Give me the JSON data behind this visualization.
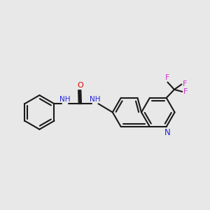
{
  "background_color": "#e8e8e8",
  "bond_color": "#1a1a1a",
  "nitrogen_color": "#2222dd",
  "oxygen_color": "#dd0000",
  "fluorine_color": "#cc33cc",
  "bond_width": 1.5,
  "figsize": [
    3.0,
    3.0
  ],
  "dpi": 100,
  "xlim": [
    0,
    10
  ],
  "ylim": [
    2.5,
    8.5
  ]
}
